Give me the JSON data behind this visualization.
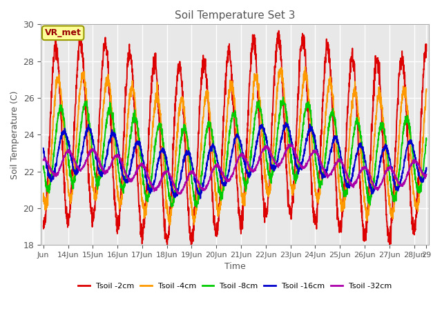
{
  "title": "Soil Temperature Set 3",
  "xlabel": "Time",
  "ylabel": "Soil Temperature (C)",
  "ylim": [
    18,
    30
  ],
  "annotation": "VR_met",
  "x_tick_labels": [
    "Jun",
    "14Jun",
    "15Jun",
    "16Jun",
    "17Jun",
    "18Jun",
    "19Jun",
    "20Jun",
    "21Jun",
    "22Jun",
    "23Jun",
    "24Jun",
    "25Jun",
    "26Jun",
    "27Jun",
    "28Jun",
    "29"
  ],
  "x_tick_positions": [
    0,
    1,
    2,
    3,
    4,
    5,
    6,
    7,
    8,
    9,
    10,
    11,
    12,
    13,
    14,
    15,
    15.5
  ],
  "series": [
    {
      "label": "Tsoil -2cm",
      "color": "#dd0000",
      "amplitude": 4.8,
      "mean": 23.5,
      "phase": 0.0,
      "noise": 0.25
    },
    {
      "label": "Tsoil -4cm",
      "color": "#ff9900",
      "amplitude": 3.3,
      "mean": 23.2,
      "phase": 0.1,
      "noise": 0.18
    },
    {
      "label": "Tsoil -8cm",
      "color": "#00cc00",
      "amplitude": 2.1,
      "mean": 22.8,
      "phase": 0.2,
      "noise": 0.12
    },
    {
      "label": "Tsoil -16cm",
      "color": "#0000cc",
      "amplitude": 1.2,
      "mean": 22.4,
      "phase": 0.33,
      "noise": 0.08
    },
    {
      "label": "Tsoil -32cm",
      "color": "#aa00aa",
      "amplitude": 0.55,
      "mean": 21.9,
      "phase": 0.5,
      "noise": 0.05
    }
  ],
  "bg_color": "#ffffff",
  "plot_bg_color": "#e8e8e8",
  "grid_color": "#ffffff",
  "linewidth": 1.4
}
